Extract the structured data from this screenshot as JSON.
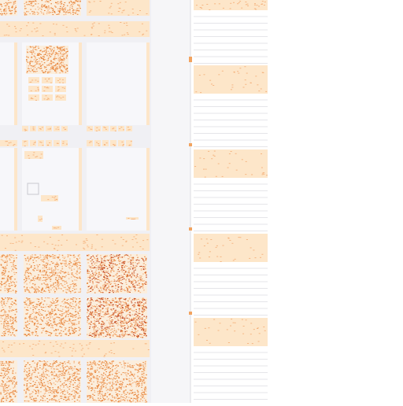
{
  "palette": {
    "background": "#ffffff",
    "panel": "#f0f0f4",
    "panel_light": "#f6f6f8",
    "grid_line": "#dcdce2",
    "bar_fill": "#fde6c9",
    "band_fill": "#fbeedd",
    "texture_dark": "#e7843a",
    "texture_mid": "#f4b07a",
    "texture_red": "#c44a22",
    "accent_marker": "#f2a35f"
  }
}
